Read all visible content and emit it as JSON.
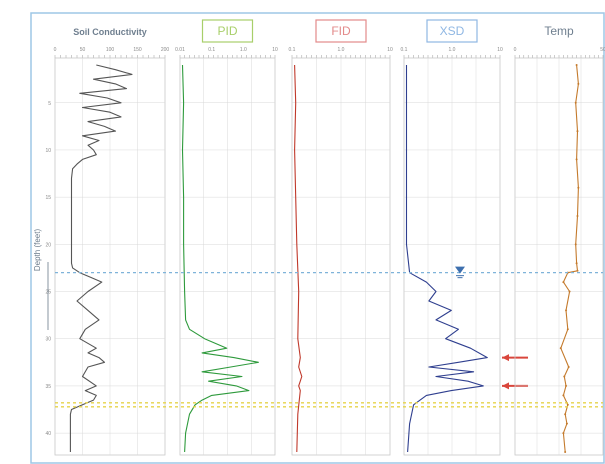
{
  "chart_data": {
    "type": "line",
    "ylabel": "Depth (feet)",
    "depth_range": [
      1,
      42
    ],
    "depth_ticks": [
      5,
      10,
      15,
      20,
      25,
      30,
      35,
      40
    ],
    "water_table_depth": 23,
    "lower_marker_depth": 37,
    "colors": {
      "border": "#9ec7e6",
      "grid": "#d9d9d9",
      "marker_line": "#e6d34a",
      "water_line": "#7fb3d9",
      "water_symbol": "#3d6fae",
      "arrow": "#d9463c"
    },
    "panels": [
      {
        "id": "soil",
        "title": "Soil Conductivity",
        "title_style": "plain",
        "color": "#555555",
        "xlim": [
          0,
          200
        ],
        "x_ticks": [
          "0",
          "50",
          "100",
          "150",
          "200"
        ],
        "x": [
          75,
          110,
          140,
          70,
          110,
          130,
          45,
          95,
          120,
          50,
          100,
          120,
          60,
          90,
          110,
          50,
          80,
          60,
          70,
          75,
          50,
          40,
          32,
          30,
          30,
          30,
          30,
          30,
          30,
          32,
          45,
          65,
          85,
          60,
          40,
          60,
          80,
          55,
          45,
          75,
          60,
          80,
          90,
          60,
          50,
          75,
          55,
          75,
          70,
          50,
          30,
          28,
          28,
          28,
          28,
          28
        ],
        "depth": [
          1,
          1.5,
          2,
          2.5,
          3,
          3.5,
          4,
          4.5,
          5,
          5.5,
          6,
          6.5,
          7,
          7.5,
          8,
          8.5,
          9,
          9.5,
          10,
          10.5,
          11,
          11.5,
          12,
          13,
          15,
          17,
          19,
          21,
          22,
          22.5,
          23,
          23.5,
          24,
          25,
          26,
          27,
          28,
          29,
          30,
          31,
          31.5,
          32,
          32.5,
          33,
          34,
          35,
          35.5,
          36,
          36.5,
          37,
          37.5,
          38,
          39,
          40,
          41,
          42
        ]
      },
      {
        "id": "pid1",
        "title": "PID",
        "title_style": "boxed",
        "box_color": "#a8cf6a",
        "color": "#2e9a3c",
        "xlim": [
          0.01,
          10
        ],
        "log": true,
        "x_ticks": [
          "0.01",
          "0.1",
          "1.0",
          "10"
        ],
        "x": [
          0.012,
          0.013,
          0.012,
          0.013,
          0.013,
          0.014,
          0.015,
          0.02,
          0.06,
          0.3,
          0.05,
          0.5,
          3.0,
          0.4,
          0.05,
          0.9,
          0.08,
          0.6,
          1.5,
          0.1,
          0.05,
          0.03,
          0.02,
          0.015,
          0.014
        ],
        "depth": [
          1,
          5,
          10,
          15,
          20,
          25,
          28,
          29,
          30,
          31,
          31.5,
          32,
          32.5,
          33,
          33.5,
          34,
          34.5,
          35,
          35.5,
          36,
          36.5,
          37,
          38,
          40,
          42
        ]
      },
      {
        "id": "pid2",
        "title": "FID",
        "title_style": "boxed",
        "box_color": "#e38a8a",
        "color": "#c0392b",
        "xlim": [
          0.01,
          10
        ],
        "log": true,
        "x_ticks": [
          "0.1",
          "1.0",
          "10"
        ],
        "x": [
          0.012,
          0.013,
          0.012,
          0.013,
          0.014,
          0.016,
          0.015,
          0.018,
          0.016,
          0.02,
          0.016,
          0.018,
          0.015,
          0.014
        ],
        "depth": [
          1,
          5,
          10,
          15,
          20,
          25,
          30,
          32,
          33,
          34,
          35,
          35.5,
          38,
          42
        ]
      },
      {
        "id": "xsd",
        "title": "XSD",
        "title_style": "boxed",
        "box_color": "#8fb7e3",
        "color": "#2f3f8f",
        "xlim": [
          0.01,
          10
        ],
        "log": true,
        "x_ticks": [
          "0.1",
          "1.0",
          "10"
        ],
        "x": [
          0.012,
          0.012,
          0.012,
          0.012,
          0.012,
          0.015,
          0.05,
          0.1,
          0.06,
          0.3,
          0.1,
          0.5,
          0.2,
          1.2,
          4.0,
          0.5,
          0.06,
          1.5,
          0.1,
          1.0,
          3.0,
          0.3,
          0.05,
          0.02,
          0.015,
          0.013
        ],
        "depth": [
          1,
          5,
          10,
          15,
          20,
          23,
          24,
          25,
          26,
          27,
          28,
          29,
          30,
          31,
          32,
          32.5,
          33,
          33.5,
          34,
          34.5,
          35,
          35.5,
          36,
          37,
          39,
          42
        ],
        "arrows_depth": [
          32,
          35
        ]
      },
      {
        "id": "temp",
        "title": "Temp",
        "title_style": "plain",
        "color": "#c47a2c",
        "xlim": [
          0,
          100
        ],
        "x_ticks": [
          "0",
          "50"
        ],
        "x": [
          70,
          72,
          69,
          71,
          70,
          72,
          71,
          69,
          70,
          71,
          60,
          55,
          62,
          58,
          60,
          52,
          61,
          56,
          58,
          55,
          60,
          57,
          59,
          55,
          57
        ],
        "depth": [
          1,
          3,
          5,
          8,
          11,
          14,
          17,
          20,
          22,
          22.8,
          23,
          24,
          25,
          27,
          29,
          31,
          33,
          34,
          35,
          36,
          37,
          38,
          39,
          40,
          42
        ]
      }
    ]
  }
}
